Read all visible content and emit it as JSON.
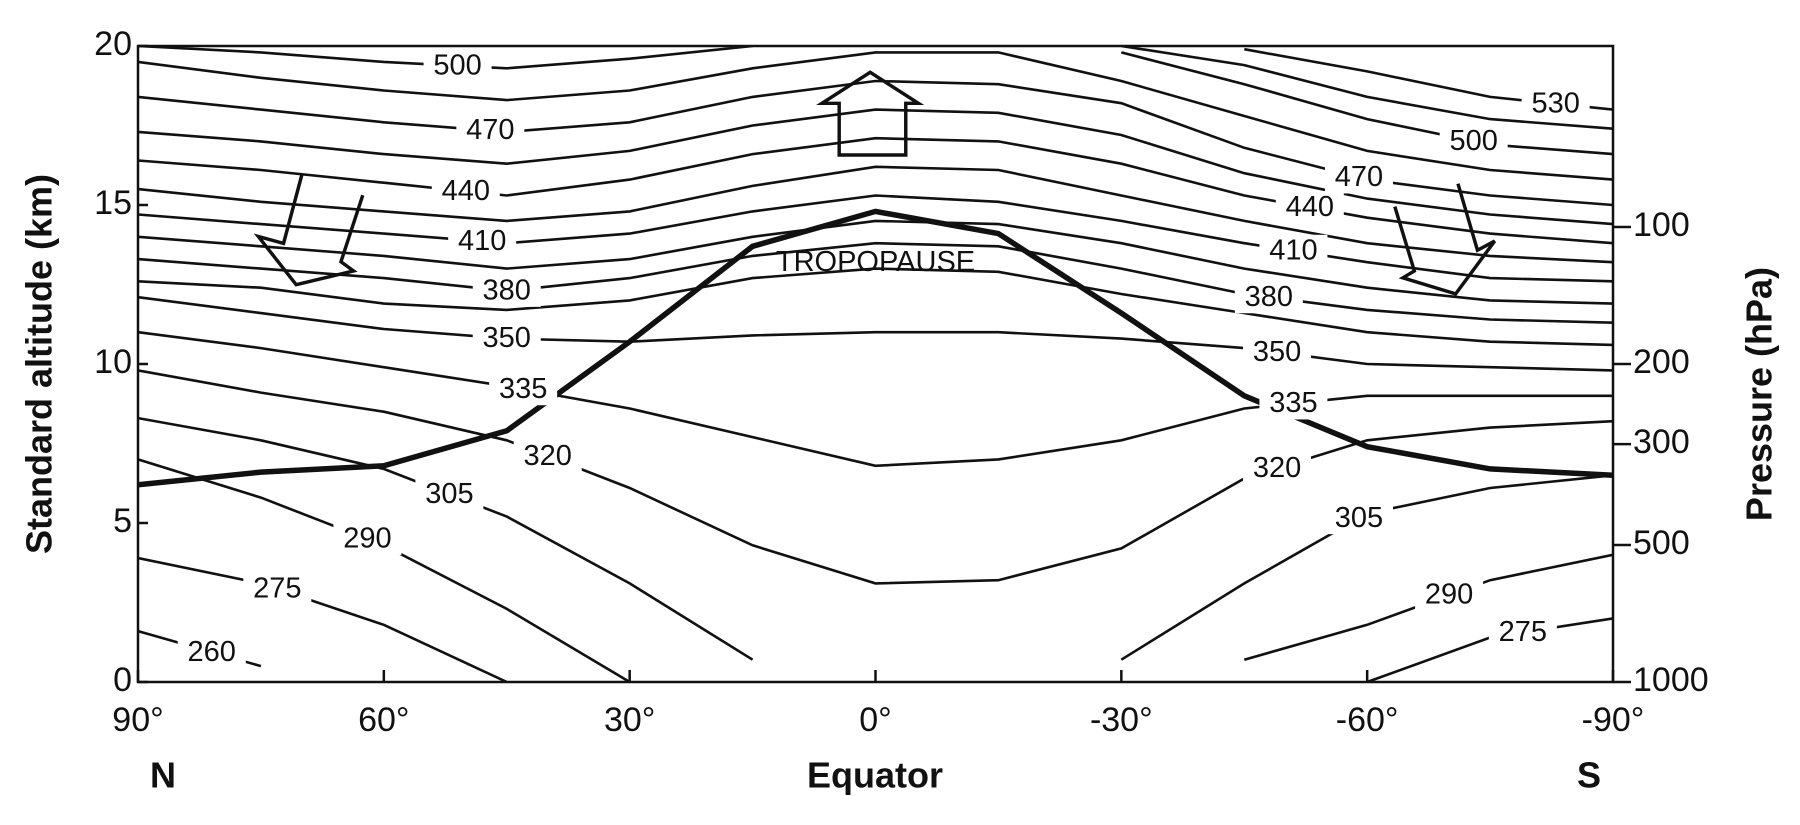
{
  "chart_data": {
    "type": "line",
    "xlabel": "Equator",
    "north_label": "N",
    "south_label": "S",
    "ylabel": "Standard altitude (km)",
    "y2label": "Pressure (hPa)",
    "color": "#111111",
    "x": [
      90,
      75,
      60,
      45,
      30,
      15,
      0,
      -15,
      -30,
      -45,
      -60,
      -75,
      -90
    ],
    "xlim": [
      90,
      -90
    ],
    "xticks": [
      {
        "value": 90,
        "label": "90°"
      },
      {
        "value": 60,
        "label": "60°"
      },
      {
        "value": 30,
        "label": "30°"
      },
      {
        "value": 0,
        "label": "0°"
      },
      {
        "value": -30,
        "label": "-30°"
      },
      {
        "value": -60,
        "label": "-60°"
      },
      {
        "value": -90,
        "label": "-90°"
      }
    ],
    "ylim": [
      0,
      20
    ],
    "yticks": [
      0,
      5,
      10,
      15,
      20
    ],
    "y2lim": [
      1000,
      40
    ],
    "y2scale": "log",
    "y2ticks": [
      100,
      200,
      300,
      500,
      1000
    ],
    "tropopause": {
      "name": "TROPOPAUSE",
      "values": [
        6.2,
        6.6,
        6.8,
        7.9,
        10.7,
        13.7,
        14.8,
        14.1,
        11.6,
        9.0,
        7.4,
        6.7,
        6.5
      ]
    },
    "series": [
      {
        "name": "260",
        "values": [
          1.6,
          0.5,
          null,
          null,
          null,
          null,
          null,
          null,
          null,
          null,
          null,
          null,
          null
        ]
      },
      {
        "name": "275",
        "values": [
          3.9,
          3.1,
          1.8,
          0,
          null,
          null,
          null,
          null,
          null,
          null,
          0,
          1.4,
          2.0
        ]
      },
      {
        "name": "290",
        "values": [
          7.0,
          5.8,
          4.3,
          2.3,
          0,
          null,
          null,
          null,
          null,
          0.7,
          1.8,
          3.2,
          4.0
        ]
      },
      {
        "name": "305",
        "values": [
          8.3,
          7.6,
          6.7,
          5.2,
          3.1,
          0.7,
          null,
          null,
          0.7,
          3.1,
          5.3,
          6.1,
          6.5
        ]
      },
      {
        "name": "320",
        "values": [
          9.8,
          9.1,
          8.5,
          7.6,
          6.1,
          4.3,
          3.1,
          3.2,
          4.2,
          6.4,
          7.6,
          8.0,
          8.2
        ]
      },
      {
        "name": "335",
        "values": [
          11.0,
          10.5,
          9.9,
          9.3,
          8.6,
          7.7,
          6.8,
          7.0,
          7.6,
          8.6,
          9.0,
          9.0,
          9.0
        ]
      },
      {
        "name": "350",
        "values": [
          12.1,
          11.6,
          11.1,
          10.8,
          10.7,
          10.9,
          11.0,
          11.0,
          10.8,
          10.5,
          10.0,
          9.9,
          9.8
        ]
      },
      {
        "values": [
          12.6,
          12.4,
          11.9,
          11.7,
          12.0,
          12.7,
          13.0,
          12.9,
          12.2,
          11.6,
          11.0,
          10.7,
          10.6
        ]
      },
      {
        "name": "380",
        "values": [
          13.3,
          13.0,
          12.7,
          12.3,
          12.7,
          13.4,
          13.8,
          13.7,
          13.0,
          12.2,
          11.7,
          11.4,
          11.3
        ]
      },
      {
        "values": [
          14.0,
          13.7,
          13.4,
          13.0,
          13.3,
          14.0,
          14.5,
          14.4,
          13.8,
          13.0,
          12.4,
          12.0,
          11.9
        ]
      },
      {
        "name": "410",
        "values": [
          14.7,
          14.4,
          14.1,
          13.8,
          14.1,
          14.8,
          15.3,
          15.1,
          14.5,
          13.8,
          13.2,
          12.7,
          12.6
        ]
      },
      {
        "values": [
          15.5,
          15.1,
          14.8,
          14.5,
          14.8,
          15.6,
          16.2,
          16.1,
          15.3,
          14.5,
          13.8,
          13.4,
          13.2
        ]
      },
      {
        "name": "440",
        "values": [
          16.4,
          16.1,
          15.7,
          15.3,
          15.8,
          16.6,
          17.1,
          17.0,
          16.3,
          15.3,
          14.6,
          14.1,
          13.8
        ]
      },
      {
        "values": [
          17.3,
          17.0,
          16.6,
          16.3,
          16.7,
          17.5,
          18.0,
          17.9,
          17.2,
          16.0,
          15.2,
          14.7,
          14.4
        ]
      },
      {
        "name": "470",
        "values": [
          18.4,
          18.0,
          17.6,
          17.3,
          17.6,
          18.4,
          18.9,
          18.8,
          18.2,
          16.8,
          15.8,
          15.3,
          15.0
        ]
      },
      {
        "values": [
          19.5,
          19.0,
          18.6,
          18.3,
          18.6,
          19.3,
          19.8,
          19.8,
          18.9,
          17.8,
          16.7,
          16.1,
          15.8
        ]
      },
      {
        "name": "500",
        "values": [
          20,
          19.8,
          19.5,
          19.3,
          19.6,
          20,
          null,
          null,
          19.8,
          18.8,
          17.7,
          16.9,
          16.6
        ]
      },
      {
        "values": [
          null,
          null,
          null,
          null,
          null,
          null,
          null,
          null,
          20,
          19.4,
          18.4,
          17.7,
          17.4
        ]
      },
      {
        "name": "530",
        "values": [
          null,
          null,
          null,
          null,
          null,
          null,
          null,
          null,
          null,
          19.9,
          19.2,
          18.4,
          18.0
        ]
      }
    ]
  }
}
